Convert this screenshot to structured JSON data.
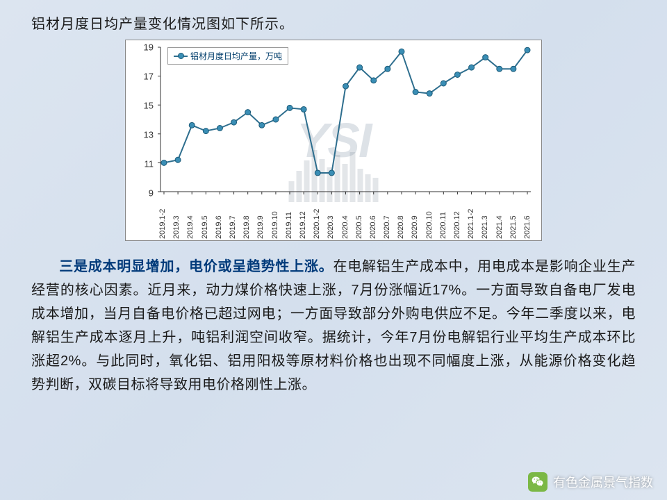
{
  "intro": "铝材月度日均产量变化情况图如下所示。",
  "chart": {
    "type": "line",
    "legend_label": "铝材月度日均产量，万吨",
    "watermark": "YSI",
    "background_color": "#ffffff",
    "border_color": "#888888",
    "line_color": "#2e6e8e",
    "marker_color": "#3a8eb5",
    "marker_border": "#1a5a78",
    "axis_color": "#333333",
    "grid_color": "#d0d0d0",
    "ylim": [
      9,
      19
    ],
    "ytick_step": 2,
    "y_ticks": [
      9,
      11,
      13,
      15,
      17,
      19
    ],
    "y_fontsize": 13,
    "x_fontsize": 11,
    "x_labels": [
      "2019.1-2",
      "2019.3",
      "2019.4",
      "2019.5",
      "2019.6",
      "2019.7",
      "2019.8",
      "2019.9",
      "2019.10",
      "2019.11",
      "2019.12",
      "2020.1-2",
      "2020.3",
      "2020.4",
      "2020.5",
      "2020.6",
      "2020.7",
      "2020.8",
      "2020.9",
      "2020.10",
      "2020.11",
      "2020.12",
      "2021.1-2",
      "2021.3",
      "2021.4",
      "2021.5",
      "2021.6"
    ],
    "values": [
      11.0,
      11.2,
      13.6,
      13.2,
      13.4,
      13.8,
      14.5,
      13.6,
      14.0,
      14.8,
      14.7,
      10.3,
      10.3,
      16.3,
      17.6,
      16.7,
      17.5,
      18.7,
      15.9,
      15.8,
      16.5,
      17.1,
      17.6,
      18.3,
      17.5,
      17.5,
      18.8
    ],
    "line_width": 2,
    "marker_size": 4
  },
  "body": {
    "highlight": "三是成本明显增加，电价或呈趋势性上涨。",
    "rest": "在电解铝生产成本中，用电成本是影响企业生产经营的核心因素。近月来，动力煤价格快速上涨，7月份涨幅近17%。一方面导致自备电厂发电成本增加，当月自备电价格已超过网电；一方面导致部分外购电供应不足。今年二季度以来，电解铝生产成本逐月上升，吨铝利润空间收窄。据统计，今年7月份电解铝行业平均生产成本环比涨超2%。与此同时，氧化铝、铝用阳极等原材料价格也出现不同幅度上涨，从能源价格变化趋势判断，双碳目标将导致用电价格刚性上涨。"
  },
  "footer_text": "有色金属景气指数"
}
